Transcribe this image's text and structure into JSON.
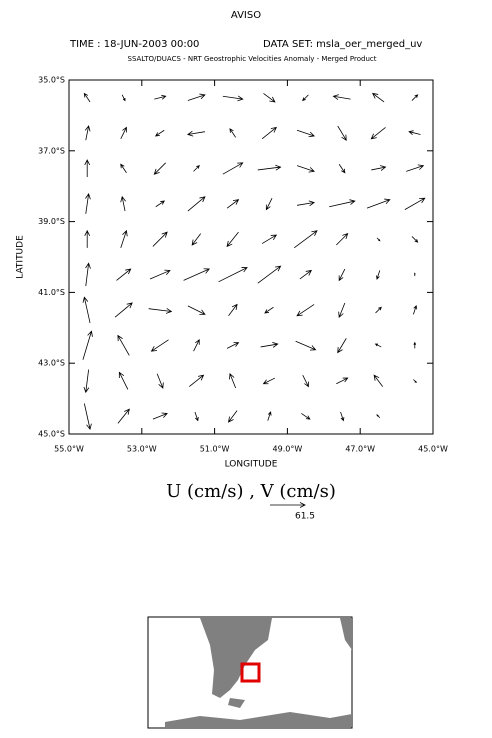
{
  "chart_data": {
    "type": "quiver",
    "title": "AVISO",
    "time_label": "TIME : 18-JUN-2003 00:00",
    "dataset_label": "DATA SET: msla_oer_merged_uv",
    "subtitle": "SSALTO/DUACS - NRT Geostrophic Velocities Anomaly - Merged Product",
    "x_label": "LONGITUDE",
    "y_label": "LATITUDE",
    "vector_label": "U (cm/s) , V (cm/s)",
    "reference_vector": 61.5,
    "color": "#000000",
    "xlim": [
      -55,
      -45
    ],
    "ylim": [
      -45,
      -35
    ],
    "xticks": [
      {
        "value": -55,
        "label": "55.0°W"
      },
      {
        "value": -53,
        "label": "53.0°W"
      },
      {
        "value": -51,
        "label": "51.0°W"
      },
      {
        "value": -49,
        "label": "49.0°W"
      },
      {
        "value": -47,
        "label": "47.0°W"
      },
      {
        "value": -45,
        "label": "45.0°W"
      }
    ],
    "yticks": [
      {
        "value": -35,
        "label": "35.0°S"
      },
      {
        "value": -37,
        "label": "37.0°S"
      },
      {
        "value": -39,
        "label": "39.0°S"
      },
      {
        "value": -41,
        "label": "41.0°S"
      },
      {
        "value": -43,
        "label": "43.0°S"
      },
      {
        "value": -45,
        "label": "45.0°S"
      }
    ],
    "lon": [
      -54.5,
      -53.5,
      -52.5,
      -51.5,
      -50.5,
      -49.5,
      -48.5,
      -47.5,
      -46.5,
      -45.5
    ],
    "lat": [
      -35.5,
      -36.5,
      -37.5,
      -38.5,
      -39.5,
      -40.5,
      -41.5,
      -42.5,
      -43.5,
      -44.5
    ],
    "u": [
      [
        -10,
        5,
        20,
        30,
        35,
        20,
        -10,
        -30,
        -20,
        10
      ],
      [
        5,
        10,
        -15,
        -30,
        -10,
        25,
        30,
        15,
        -25,
        -20
      ],
      [
        0,
        -10,
        -20,
        10,
        35,
        40,
        30,
        10,
        25,
        30
      ],
      [
        5,
        -5,
        15,
        30,
        20,
        -10,
        30,
        45,
        40,
        35
      ],
      [
        0,
        10,
        25,
        -15,
        -20,
        25,
        40,
        20,
        5,
        10
      ],
      [
        5,
        25,
        35,
        45,
        50,
        40,
        20,
        -10,
        -5,
        0
      ],
      [
        -10,
        30,
        40,
        30,
        15,
        -15,
        -30,
        -10,
        10,
        5
      ],
      [
        15,
        -20,
        -30,
        10,
        20,
        30,
        35,
        -15,
        -10,
        0
      ],
      [
        -5,
        -15,
        10,
        25,
        -10,
        -20,
        10,
        20,
        -15,
        5
      ],
      [
        10,
        20,
        25,
        5,
        -15,
        5,
        15,
        5,
        -5,
        0
      ]
    ],
    "v": [
      [
        15,
        -10,
        5,
        10,
        -5,
        -15,
        -10,
        5,
        15,
        10
      ],
      [
        25,
        20,
        -10,
        -5,
        15,
        20,
        -10,
        -25,
        -20,
        5
      ],
      [
        30,
        15,
        -20,
        10,
        20,
        5,
        -10,
        -15,
        5,
        10
      ],
      [
        35,
        25,
        10,
        25,
        15,
        -20,
        5,
        10,
        15,
        20
      ],
      [
        30,
        30,
        25,
        -20,
        -25,
        15,
        30,
        20,
        -5,
        -10
      ],
      [
        40,
        20,
        15,
        20,
        25,
        30,
        15,
        -20,
        -15,
        5
      ],
      [
        45,
        25,
        -5,
        -15,
        20,
        -10,
        -20,
        -25,
        10,
        15
      ],
      [
        50,
        35,
        -20,
        20,
        10,
        5,
        -15,
        -25,
        5,
        10
      ],
      [
        -40,
        30,
        -25,
        20,
        25,
        -10,
        -20,
        10,
        20,
        -5
      ],
      [
        -45,
        25,
        10,
        -15,
        -20,
        15,
        -10,
        -15,
        5,
        0
      ]
    ]
  }
}
